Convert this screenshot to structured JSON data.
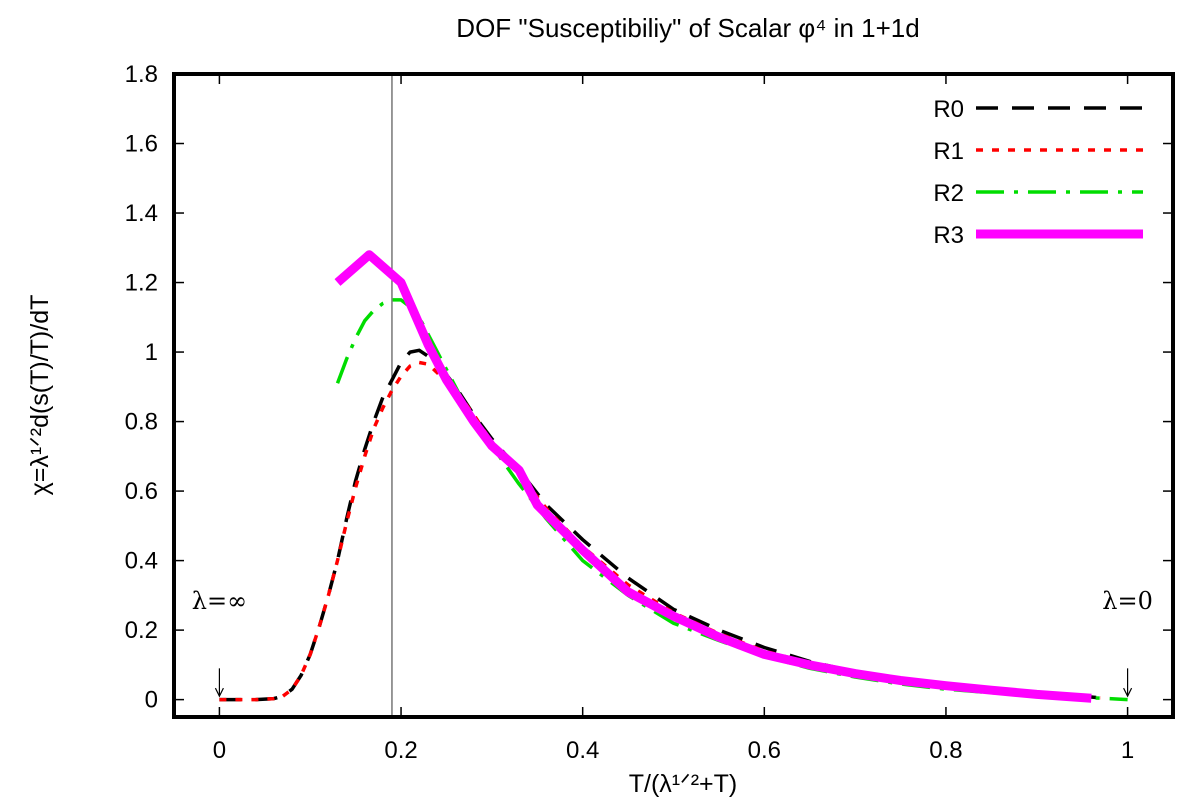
{
  "chart_data": {
    "type": "line",
    "title": "DOF \"Susceptibiliy\" of Scalar φ⁴ in 1+1d",
    "xlabel": "T/(λ¹ᐟ²+T)",
    "ylabel": "χ=λ¹ᐟ²d(s(T)/T)/dT",
    "xlim": [
      -0.05,
      1.05
    ],
    "ylim": [
      -0.05,
      1.8
    ],
    "xticks": [
      0,
      0.2,
      0.4,
      0.6,
      0.8,
      1
    ],
    "xtick_labels": [
      "0",
      "0.2",
      "0.4",
      "0.6",
      "0.8",
      "1"
    ],
    "yticks": [
      0,
      0.2,
      0.4,
      0.6,
      0.8,
      1,
      1.2,
      1.4,
      1.6,
      1.8
    ],
    "ytick_labels": [
      "0",
      "0.2",
      "0.4",
      "0.6",
      "0.8",
      "1",
      "1.2",
      "1.4",
      "1.6",
      "1.8"
    ],
    "grid": false,
    "legend_position": "top-right",
    "vertical_line_x": 0.19,
    "annotations": [
      {
        "text": "λ=∞",
        "arrow_x": 0,
        "arrow_y_top": 0.09,
        "arrow_y_bottom": 0.01
      },
      {
        "text": "λ=0",
        "arrow_x": 1,
        "arrow_y_top": 0.09,
        "arrow_y_bottom": 0.01
      }
    ],
    "series": [
      {
        "name": "R0",
        "color": "#000000",
        "style": "dashed",
        "x": [
          0,
          0.02,
          0.04,
          0.06,
          0.07,
          0.08,
          0.09,
          0.1,
          0.11,
          0.12,
          0.13,
          0.14,
          0.15,
          0.16,
          0.17,
          0.18,
          0.19,
          0.2,
          0.21,
          0.22,
          0.24,
          0.26,
          0.28,
          0.3,
          0.33,
          0.36,
          0.4,
          0.45,
          0.5,
          0.55,
          0.6,
          0.65,
          0.7,
          0.75,
          0.8,
          0.85,
          0.9,
          0.95,
          0.97
        ],
        "y": [
          0,
          0,
          0,
          0.003,
          0.01,
          0.03,
          0.07,
          0.13,
          0.21,
          0.3,
          0.4,
          0.52,
          0.63,
          0.72,
          0.8,
          0.87,
          0.92,
          0.97,
          1.0,
          1.005,
          0.97,
          0.9,
          0.82,
          0.75,
          0.66,
          0.56,
          0.46,
          0.35,
          0.26,
          0.2,
          0.15,
          0.11,
          0.08,
          0.06,
          0.04,
          0.03,
          0.02,
          0.01,
          0.005
        ]
      },
      {
        "name": "R1",
        "color": "#ff0000",
        "style": "dotted",
        "x": [
          0,
          0.02,
          0.04,
          0.06,
          0.07,
          0.08,
          0.09,
          0.1,
          0.11,
          0.12,
          0.13,
          0.14,
          0.15,
          0.16,
          0.17,
          0.18,
          0.19,
          0.2,
          0.21,
          0.22,
          0.23,
          0.24,
          0.26,
          0.28,
          0.3,
          0.33,
          0.36,
          0.4,
          0.45,
          0.5,
          0.55,
          0.6,
          0.65,
          0.7,
          0.75,
          0.8,
          0.85,
          0.9,
          0.95,
          0.97
        ],
        "y": [
          0,
          0,
          0,
          0.003,
          0.01,
          0.03,
          0.07,
          0.13,
          0.21,
          0.3,
          0.4,
          0.51,
          0.61,
          0.7,
          0.78,
          0.84,
          0.89,
          0.93,
          0.96,
          0.97,
          0.965,
          0.94,
          0.89,
          0.82,
          0.74,
          0.65,
          0.55,
          0.44,
          0.33,
          0.25,
          0.19,
          0.14,
          0.105,
          0.075,
          0.055,
          0.04,
          0.03,
          0.02,
          0.01,
          0.005
        ]
      },
      {
        "name": "R2",
        "color": "#00dd00",
        "style": "dashdot",
        "x": [
          0.13,
          0.14,
          0.15,
          0.16,
          0.17,
          0.18,
          0.19,
          0.2,
          0.21,
          0.22,
          0.24,
          0.26,
          0.28,
          0.3,
          0.33,
          0.36,
          0.4,
          0.45,
          0.5,
          0.55,
          0.6,
          0.65,
          0.7,
          0.75,
          0.8,
          0.85,
          0.9,
          0.95,
          0.97,
          1.0
        ],
        "y": [
          0.91,
          0.98,
          1.04,
          1.09,
          1.12,
          1.14,
          1.15,
          1.15,
          1.13,
          1.1,
          1.0,
          0.9,
          0.8,
          0.73,
          0.62,
          0.52,
          0.4,
          0.3,
          0.22,
          0.17,
          0.125,
          0.09,
          0.065,
          0.045,
          0.03,
          0.02,
          0.012,
          0.006,
          0.004,
          0.0
        ]
      },
      {
        "name": "R3",
        "color": "#ff00ff",
        "style": "solid",
        "x": [
          0.13,
          0.165,
          0.2,
          0.23,
          0.25,
          0.28,
          0.3,
          0.33,
          0.35,
          0.4,
          0.45,
          0.5,
          0.55,
          0.6,
          0.65,
          0.7,
          0.75,
          0.8,
          0.85,
          0.9,
          0.96
        ],
        "y": [
          1.2,
          1.28,
          1.2,
          1.02,
          0.92,
          0.8,
          0.73,
          0.66,
          0.56,
          0.43,
          0.31,
          0.24,
          0.18,
          0.13,
          0.1,
          0.075,
          0.055,
          0.04,
          0.027,
          0.015,
          0.004
        ]
      }
    ]
  }
}
